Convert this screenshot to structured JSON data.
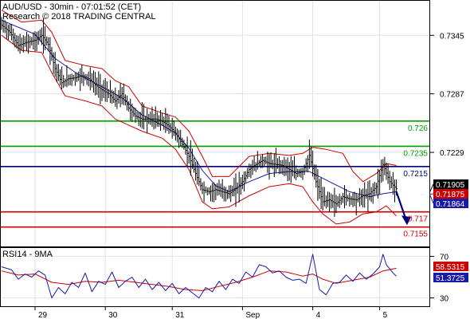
{
  "header": {
    "title": "AUD/USD - 30min - 07:01:52 (CET)",
    "subtitle": "Research © 2018 TRADING CENTRAL"
  },
  "colors": {
    "price": "#000000",
    "bands": "#cc0000",
    "ma": "#1a1aa8",
    "resistance": "#00a000",
    "pivot": "#00007f",
    "support": "#cc0000",
    "rsi": "#1a1aa8",
    "rsi_ma": "#cc0000",
    "grid": "#e2e2e2"
  },
  "chart_data": [
    {
      "type": "line",
      "name": "price",
      "x_labels": [
        "29",
        "30",
        "31",
        "Sep",
        "4",
        "5"
      ],
      "y_ticks": [
        "0.7345",
        "0.7287",
        "0.7229"
      ],
      "ylim": [
        0.7135,
        0.738
      ],
      "close_path": [
        [
          0,
          0.7355
        ],
        [
          5,
          0.7348
        ],
        [
          10,
          0.7335
        ],
        [
          15,
          0.7338
        ],
        [
          20,
          0.734
        ],
        [
          24,
          0.7345
        ],
        [
          28,
          0.7336
        ],
        [
          32,
          0.7312
        ],
        [
          36,
          0.7298
        ],
        [
          40,
          0.7302
        ],
        [
          44,
          0.7303
        ],
        [
          48,
          0.7305
        ],
        [
          52,
          0.7302
        ],
        [
          56,
          0.7296
        ],
        [
          60,
          0.7291
        ],
        [
          64,
          0.7287
        ],
        [
          68,
          0.728
        ],
        [
          72,
          0.7287
        ],
        [
          76,
          0.7273
        ],
        [
          80,
          0.7265
        ],
        [
          84,
          0.7262
        ],
        [
          88,
          0.7262
        ],
        [
          92,
          0.7262
        ],
        [
          96,
          0.726
        ],
        [
          100,
          0.7255
        ],
        [
          104,
          0.7248
        ],
        [
          108,
          0.7237
        ],
        [
          112,
          0.7225
        ],
        [
          116,
          0.7208
        ],
        [
          120,
          0.7192
        ],
        [
          124,
          0.719
        ],
        [
          128,
          0.7192
        ],
        [
          132,
          0.719
        ],
        [
          136,
          0.7188
        ],
        [
          140,
          0.7193
        ],
        [
          144,
          0.72
        ],
        [
          148,
          0.7212
        ],
        [
          152,
          0.7217
        ],
        [
          156,
          0.7221
        ],
        [
          160,
          0.7218
        ],
        [
          164,
          0.7217
        ],
        [
          168,
          0.7216
        ],
        [
          172,
          0.7212
        ],
        [
          176,
          0.7208
        ],
        [
          180,
          0.721
        ],
        [
          184,
          0.7226
        ],
        [
          188,
          0.72
        ],
        [
          192,
          0.718
        ],
        [
          196,
          0.7182
        ],
        [
          200,
          0.7178
        ],
        [
          204,
          0.7185
        ],
        [
          208,
          0.7183
        ],
        [
          212,
          0.7182
        ],
        [
          216,
          0.7186
        ],
        [
          220,
          0.7188
        ],
        [
          224,
          0.7195
        ],
        [
          228,
          0.7217
        ],
        [
          232,
          0.72
        ],
        [
          236,
          0.7193
        ]
      ],
      "upper_band": [
        [
          0,
          0.737
        ],
        [
          12,
          0.7358
        ],
        [
          24,
          0.736
        ],
        [
          30,
          0.7348
        ],
        [
          38,
          0.732
        ],
        [
          50,
          0.7315
        ],
        [
          60,
          0.7312
        ],
        [
          68,
          0.73
        ],
        [
          76,
          0.7294
        ],
        [
          84,
          0.7275
        ],
        [
          96,
          0.7268
        ],
        [
          104,
          0.7264
        ],
        [
          112,
          0.725
        ],
        [
          120,
          0.7225
        ],
        [
          126,
          0.7205
        ],
        [
          136,
          0.7205
        ],
        [
          148,
          0.7225
        ],
        [
          160,
          0.7228
        ],
        [
          172,
          0.7226
        ],
        [
          180,
          0.7228
        ],
        [
          186,
          0.7234
        ],
        [
          194,
          0.7232
        ],
        [
          204,
          0.7228
        ],
        [
          210,
          0.721
        ],
        [
          216,
          0.72
        ],
        [
          224,
          0.7208
        ],
        [
          230,
          0.7218
        ],
        [
          236,
          0.7216
        ]
      ],
      "lower_band": [
        [
          0,
          0.7345
        ],
        [
          12,
          0.733
        ],
        [
          24,
          0.7328
        ],
        [
          30,
          0.7308
        ],
        [
          38,
          0.7285
        ],
        [
          50,
          0.728
        ],
        [
          60,
          0.7275
        ],
        [
          68,
          0.7262
        ],
        [
          76,
          0.7256
        ],
        [
          84,
          0.725
        ],
        [
          96,
          0.7243
        ],
        [
          104,
          0.7232
        ],
        [
          112,
          0.7212
        ],
        [
          120,
          0.718
        ],
        [
          126,
          0.7173
        ],
        [
          136,
          0.7175
        ],
        [
          148,
          0.7186
        ],
        [
          160,
          0.7195
        ],
        [
          172,
          0.7198
        ],
        [
          180,
          0.7195
        ],
        [
          186,
          0.718
        ],
        [
          192,
          0.7168
        ],
        [
          200,
          0.7158
        ],
        [
          208,
          0.716
        ],
        [
          216,
          0.7168
        ],
        [
          224,
          0.717
        ],
        [
          230,
          0.7176
        ],
        [
          236,
          0.7166
        ]
      ],
      "moving_average": [
        [
          0,
          0.736
        ],
        [
          20,
          0.7346
        ],
        [
          32,
          0.7322
        ],
        [
          46,
          0.7306
        ],
        [
          60,
          0.7294
        ],
        [
          72,
          0.7283
        ],
        [
          84,
          0.7266
        ],
        [
          96,
          0.7256
        ],
        [
          104,
          0.7248
        ],
        [
          112,
          0.7233
        ],
        [
          120,
          0.7211
        ],
        [
          128,
          0.7196
        ],
        [
          136,
          0.719
        ],
        [
          148,
          0.72
        ],
        [
          160,
          0.7208
        ],
        [
          172,
          0.721
        ],
        [
          184,
          0.721
        ],
        [
          196,
          0.72
        ],
        [
          208,
          0.719
        ],
        [
          220,
          0.7185
        ],
        [
          228,
          0.7188
        ],
        [
          236,
          0.719
        ]
      ],
      "x_range": [
        0,
        240
      ],
      "level_lines": [
        {
          "value": 0.726,
          "label": "0.726",
          "kind": "resistance"
        },
        {
          "value": 0.7235,
          "label": "0.7235",
          "kind": "resistance"
        },
        {
          "value": 0.7215,
          "label": "0.7215",
          "kind": "pivot"
        },
        {
          "value": 0.717,
          "label": "0.717",
          "kind": "support"
        },
        {
          "value": 0.7155,
          "label": "0.7155",
          "kind": "support"
        }
      ],
      "price_badges": [
        {
          "label": "0.71905",
          "value": 0.71905,
          "color": "#000000"
        },
        {
          "label": "0.71875",
          "value": 0.71875,
          "color": "#cc0000"
        },
        {
          "label": "0.71864",
          "value": 0.71864,
          "color": "#1a1aa8"
        }
      ],
      "projection": {
        "from": [
          236,
          0.719
        ],
        "to": [
          240,
          0.7168
        ]
      }
    },
    {
      "type": "line",
      "name": "RSI14 - 9MA",
      "title": "RSI14 - 9MA",
      "ylim": [
        22,
        78
      ],
      "y_ticks": [
        "70",
        "30"
      ],
      "series": [
        {
          "name": "RSI",
          "values": [
            [
              0,
              60
            ],
            [
              6,
              57
            ],
            [
              10,
              48
            ],
            [
              14,
              53
            ],
            [
              18,
              50
            ],
            [
              22,
              56
            ],
            [
              26,
              52
            ],
            [
              30,
              30
            ],
            [
              34,
              40
            ],
            [
              38,
              34
            ],
            [
              42,
              45
            ],
            [
              46,
              40
            ],
            [
              50,
              54
            ],
            [
              54,
              36
            ],
            [
              58,
              46
            ],
            [
              62,
              43
            ],
            [
              66,
              55
            ],
            [
              70,
              40
            ],
            [
              74,
              46
            ],
            [
              78,
              50
            ],
            [
              82,
              40
            ],
            [
              86,
              48
            ],
            [
              90,
              38
            ],
            [
              94,
              45
            ],
            [
              98,
              37
            ],
            [
              102,
              44
            ],
            [
              106,
              34
            ],
            [
              110,
              40
            ],
            [
              114,
              35
            ],
            [
              118,
              30
            ],
            [
              122,
              40
            ],
            [
              126,
              36
            ],
            [
              130,
              46
            ],
            [
              134,
              38
            ],
            [
              138,
              48
            ],
            [
              142,
              44
            ],
            [
              146,
              55
            ],
            [
              150,
              50
            ],
            [
              154,
              62
            ],
            [
              158,
              60
            ],
            [
              162,
              54
            ],
            [
              166,
              56
            ],
            [
              170,
              50
            ],
            [
              174,
              47
            ],
            [
              178,
              48
            ],
            [
              182,
              44
            ],
            [
              186,
              72
            ],
            [
              190,
              38
            ],
            [
              194,
              33
            ],
            [
              198,
              44
            ],
            [
              202,
              45
            ],
            [
              206,
              52
            ],
            [
              210,
              46
            ],
            [
              214,
              54
            ],
            [
              218,
              48
            ],
            [
              222,
              53
            ],
            [
              226,
              60
            ],
            [
              228,
              72
            ],
            [
              230,
              62
            ],
            [
              234,
              54
            ],
            [
              236,
              51
            ]
          ]
        },
        {
          "name": "9MA",
          "values": [
            [
              0,
              56
            ],
            [
              10,
              52
            ],
            [
              20,
              53
            ],
            [
              30,
              45
            ],
            [
              40,
              43
            ],
            [
              50,
              46
            ],
            [
              60,
              45
            ],
            [
              70,
              47
            ],
            [
              80,
              45
            ],
            [
              90,
              43
            ],
            [
              100,
              41
            ],
            [
              110,
              38
            ],
            [
              120,
              37
            ],
            [
              130,
              41
            ],
            [
              140,
              45
            ],
            [
              150,
              50
            ],
            [
              160,
              56
            ],
            [
              170,
              55
            ],
            [
              180,
              51
            ],
            [
              186,
              53
            ],
            [
              192,
              48
            ],
            [
              200,
              44
            ],
            [
              210,
              47
            ],
            [
              220,
              50
            ],
            [
              228,
              56
            ],
            [
              236,
              58.5
            ]
          ]
        }
      ],
      "value_badges": [
        {
          "label": "58.5315",
          "value": 58.5315,
          "color": "#cc0000"
        },
        {
          "label": "51.3725",
          "value": 51.3725,
          "color": "#1a1aa8"
        }
      ]
    }
  ]
}
